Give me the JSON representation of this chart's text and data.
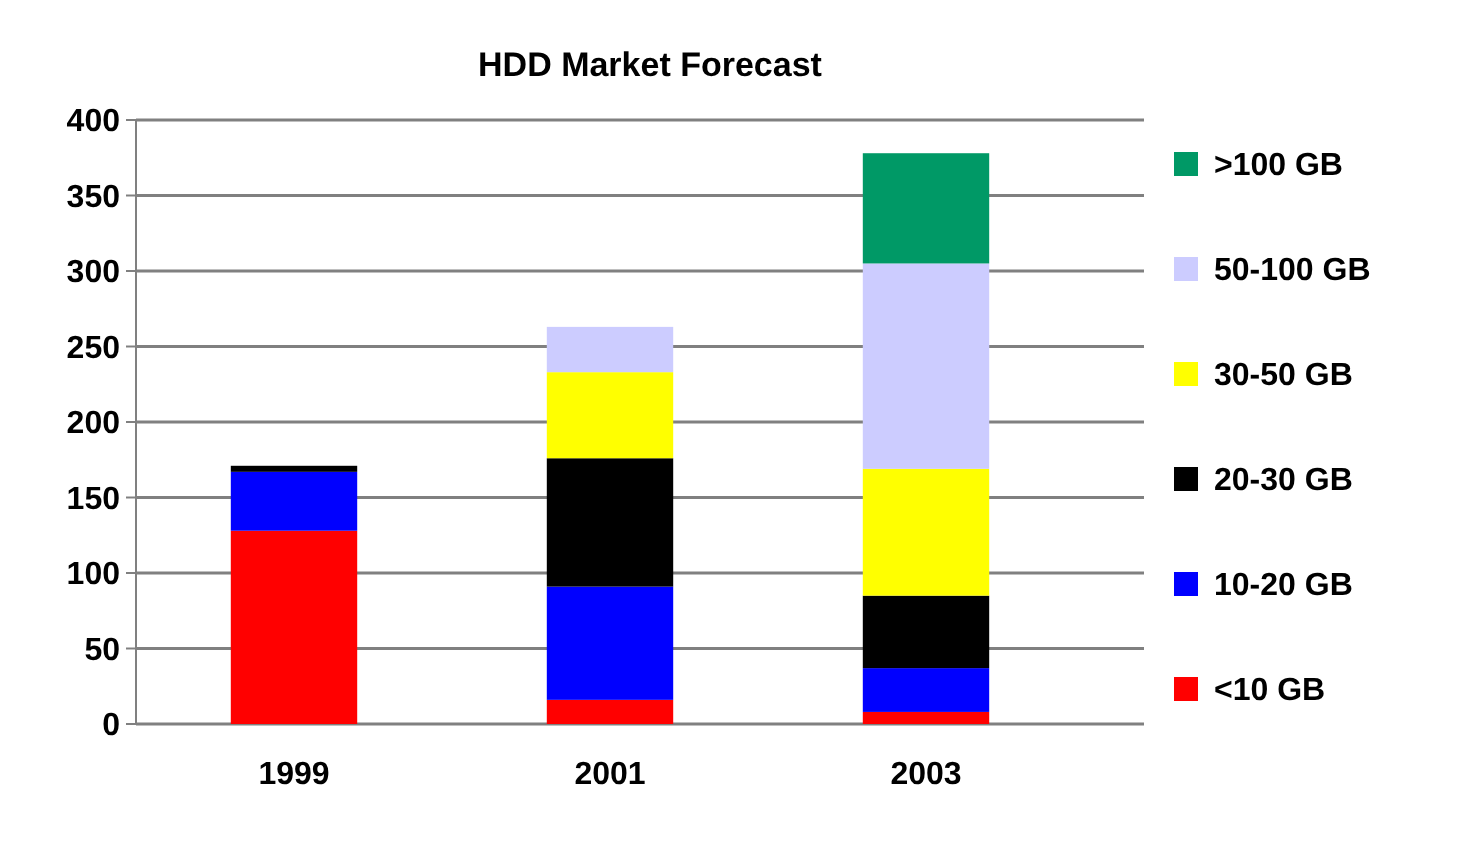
{
  "chart_data": {
    "type": "bar",
    "title": "HDD Market Forecast",
    "categories": [
      "1999",
      "2001",
      "2003"
    ],
    "stacked": true,
    "ylim": [
      0,
      400
    ],
    "yticks": [
      0,
      50,
      100,
      150,
      200,
      250,
      300,
      350,
      400
    ],
    "grid": "y",
    "legend": "right",
    "series": [
      {
        "name": "<10 GB",
        "color": "#ff0000",
        "values": [
          128,
          16,
          8
        ]
      },
      {
        "name": "10-20 GB",
        "color": "#0000ff",
        "values": [
          39,
          75,
          29
        ]
      },
      {
        "name": "20-30 GB",
        "color": "#000000",
        "values": [
          4,
          85,
          48
        ]
      },
      {
        "name": "30-50 GB",
        "color": "#ffff00",
        "values": [
          null,
          57,
          84
        ]
      },
      {
        "name": "50-100 GB",
        "color": "#ccccff",
        "values": [
          null,
          30,
          136
        ]
      },
      {
        "name": ">100 GB",
        "color": "#009966",
        "values": [
          null,
          null,
          73
        ]
      }
    ]
  }
}
